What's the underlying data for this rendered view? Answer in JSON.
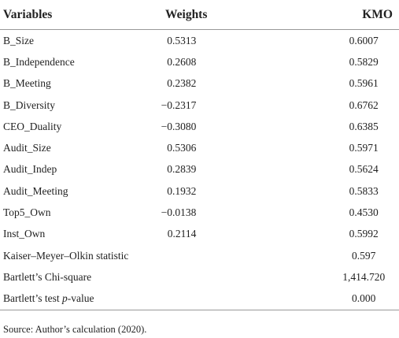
{
  "table": {
    "header": [
      "Variables",
      "Weights",
      "KMO"
    ],
    "rows": [
      [
        "B_Size",
        "0.5313",
        "0.6007"
      ],
      [
        "B_Independence",
        "0.2608",
        "0.5829"
      ],
      [
        "B_Meeting",
        "0.2382",
        "0.5961"
      ],
      [
        "B_Diversity",
        "−0.2317",
        "0.6762"
      ],
      [
        "CEO_Duality",
        "−0.3080",
        "0.6385"
      ],
      [
        "Audit_Size",
        "0.5306",
        "0.5971"
      ],
      [
        "Audit_Indep",
        "0.2839",
        "0.5624"
      ],
      [
        "Audit_Meeting",
        "0.1932",
        "0.5833"
      ],
      [
        "Top5_Own",
        "−0.0138",
        "0.4530"
      ],
      [
        "Inst_Own",
        "0.2114",
        "0.5992"
      ],
      [
        "Kaiser–Meyer–Olkin statistic",
        "",
        "0.597"
      ],
      [
        "Bartlett’s Chi-square",
        "",
        "1,414.720"
      ]
    ],
    "last_row": {
      "label_parts": [
        "Bartlett’s test ",
        "p",
        "-value"
      ],
      "kmo": "0.000"
    }
  },
  "source": "Source: Author’s calculation (2020)."
}
